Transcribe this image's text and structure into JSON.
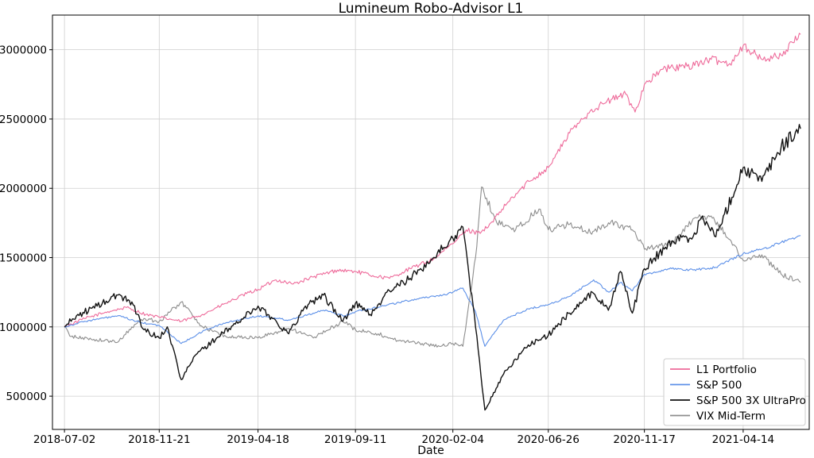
{
  "chart_data": {
    "type": "line",
    "title": "Lumineum Robo-Advisor L1",
    "xlabel": "Date",
    "ylabel": "",
    "x_ticks": [
      "2018-07-02",
      "2018-11-21",
      "2019-04-18",
      "2019-09-11",
      "2020-02-04",
      "2020-06-26",
      "2020-11-17",
      "2021-04-14"
    ],
    "x_range": [
      "2018-06-14",
      "2021-07-22"
    ],
    "y_ticks": [
      500000,
      1000000,
      1500000,
      2000000,
      2500000,
      3000000
    ],
    "y_tick_labels": [
      "500000",
      "1000000",
      "1500000",
      "2000000",
      "2500000",
      "3000000"
    ],
    "ylim": [
      260000,
      3250000
    ],
    "grid": true,
    "legend_position": "bottom-right",
    "series": [
      {
        "name": "L1 Portfolio",
        "color": "#ee6a9a",
        "points": [
          [
            "2018-07-02",
            1000000
          ],
          [
            "2018-08-01",
            1060000
          ],
          [
            "2018-09-05",
            1110000
          ],
          [
            "2018-10-03",
            1140000
          ],
          [
            "2018-11-01",
            1090000
          ],
          [
            "2018-11-21",
            1070000
          ],
          [
            "2018-12-24",
            1040000
          ],
          [
            "2019-01-25",
            1090000
          ],
          [
            "2019-03-01",
            1170000
          ],
          [
            "2019-04-01",
            1240000
          ],
          [
            "2019-04-18",
            1270000
          ],
          [
            "2019-05-15",
            1340000
          ],
          [
            "2019-06-10",
            1310000
          ],
          [
            "2019-07-10",
            1360000
          ],
          [
            "2019-08-15",
            1410000
          ],
          [
            "2019-09-11",
            1400000
          ],
          [
            "2019-10-07",
            1370000
          ],
          [
            "2019-11-01",
            1350000
          ],
          [
            "2019-12-02",
            1420000
          ],
          [
            "2020-01-06",
            1490000
          ],
          [
            "2020-02-04",
            1600000
          ],
          [
            "2020-02-24",
            1700000
          ],
          [
            "2020-03-12",
            1680000
          ],
          [
            "2020-03-28",
            1720000
          ],
          [
            "2020-04-25",
            1890000
          ],
          [
            "2020-05-28",
            2050000
          ],
          [
            "2020-06-26",
            2150000
          ],
          [
            "2020-07-28",
            2400000
          ],
          [
            "2020-08-28",
            2560000
          ],
          [
            "2020-09-28",
            2640000
          ],
          [
            "2020-10-20",
            2680000
          ],
          [
            "2020-11-03",
            2550000
          ],
          [
            "2020-11-17",
            2750000
          ],
          [
            "2020-12-15",
            2860000
          ],
          [
            "2021-01-20",
            2880000
          ],
          [
            "2021-02-25",
            2930000
          ],
          [
            "2021-03-25",
            2900000
          ],
          [
            "2021-04-14",
            3030000
          ],
          [
            "2021-05-12",
            2930000
          ],
          [
            "2021-06-10",
            2960000
          ],
          [
            "2021-07-09",
            3110000
          ]
        ]
      },
      {
        "name": "S&P 500",
        "color": "#5b8fe8",
        "points": [
          [
            "2018-07-02",
            1000000
          ],
          [
            "2018-08-01",
            1040000
          ],
          [
            "2018-09-20",
            1080000
          ],
          [
            "2018-10-25",
            1030000
          ],
          [
            "2018-11-21",
            1010000
          ],
          [
            "2018-12-24",
            880000
          ],
          [
            "2019-01-30",
            980000
          ],
          [
            "2019-03-01",
            1030000
          ],
          [
            "2019-04-18",
            1080000
          ],
          [
            "2019-06-03",
            1050000
          ],
          [
            "2019-07-25",
            1120000
          ],
          [
            "2019-08-26",
            1080000
          ],
          [
            "2019-09-11",
            1110000
          ],
          [
            "2019-10-30",
            1160000
          ],
          [
            "2019-12-20",
            1210000
          ],
          [
            "2020-01-20",
            1230000
          ],
          [
            "2020-02-04",
            1250000
          ],
          [
            "2020-02-19",
            1280000
          ],
          [
            "2020-03-09",
            1110000
          ],
          [
            "2020-03-23",
            860000
          ],
          [
            "2020-04-20",
            1050000
          ],
          [
            "2020-05-27",
            1130000
          ],
          [
            "2020-06-26",
            1160000
          ],
          [
            "2020-07-28",
            1220000
          ],
          [
            "2020-09-02",
            1340000
          ],
          [
            "2020-09-25",
            1250000
          ],
          [
            "2020-10-12",
            1320000
          ],
          [
            "2020-10-30",
            1260000
          ],
          [
            "2020-11-17",
            1380000
          ],
          [
            "2020-12-28",
            1420000
          ],
          [
            "2021-01-29",
            1410000
          ],
          [
            "2021-03-04",
            1430000
          ],
          [
            "2021-04-14",
            1530000
          ],
          [
            "2021-05-12",
            1560000
          ],
          [
            "2021-06-10",
            1610000
          ],
          [
            "2021-07-09",
            1660000
          ]
        ]
      },
      {
        "name": "S&P 500 3X UltraPro",
        "color": "#111111",
        "points": [
          [
            "2018-07-02",
            1000000
          ],
          [
            "2018-07-20",
            1080000
          ],
          [
            "2018-08-20",
            1150000
          ],
          [
            "2018-09-20",
            1230000
          ],
          [
            "2018-10-11",
            1180000
          ],
          [
            "2018-10-29",
            980000
          ],
          [
            "2018-11-21",
            920000
          ],
          [
            "2018-12-03",
            1000000
          ],
          [
            "2018-12-24",
            620000
          ],
          [
            "2019-01-15",
            800000
          ],
          [
            "2019-02-15",
            920000
          ],
          [
            "2019-03-15",
            1020000
          ],
          [
            "2019-04-18",
            1150000
          ],
          [
            "2019-05-10",
            1060000
          ],
          [
            "2019-06-03",
            950000
          ],
          [
            "2019-06-28",
            1150000
          ],
          [
            "2019-07-25",
            1230000
          ],
          [
            "2019-08-23",
            1040000
          ],
          [
            "2019-09-11",
            1170000
          ],
          [
            "2019-10-03",
            1090000
          ],
          [
            "2019-11-01",
            1260000
          ],
          [
            "2019-12-02",
            1350000
          ],
          [
            "2020-01-06",
            1500000
          ],
          [
            "2020-02-04",
            1640000
          ],
          [
            "2020-02-19",
            1720000
          ],
          [
            "2020-03-09",
            1000000
          ],
          [
            "2020-03-23",
            400000
          ],
          [
            "2020-04-20",
            660000
          ],
          [
            "2020-05-27",
            870000
          ],
          [
            "2020-06-26",
            940000
          ],
          [
            "2020-07-28",
            1100000
          ],
          [
            "2020-08-31",
            1250000
          ],
          [
            "2020-09-24",
            1120000
          ],
          [
            "2020-10-12",
            1400000
          ],
          [
            "2020-10-30",
            1100000
          ],
          [
            "2020-11-17",
            1420000
          ],
          [
            "2020-12-28",
            1620000
          ],
          [
            "2021-01-29",
            1650000
          ],
          [
            "2021-02-12",
            1800000
          ],
          [
            "2021-03-04",
            1650000
          ],
          [
            "2021-04-14",
            2150000
          ],
          [
            "2021-05-12",
            2050000
          ],
          [
            "2021-06-10",
            2300000
          ],
          [
            "2021-07-09",
            2430000
          ]
        ]
      },
      {
        "name": "VIX Mid-Term",
        "color": "#8c8c8c",
        "points": [
          [
            "2018-07-02",
            1000000
          ],
          [
            "2018-07-12",
            930000
          ],
          [
            "2018-08-15",
            910000
          ],
          [
            "2018-09-20",
            890000
          ],
          [
            "2018-10-11",
            1000000
          ],
          [
            "2018-10-29",
            1060000
          ],
          [
            "2018-11-21",
            1040000
          ],
          [
            "2018-12-24",
            1180000
          ],
          [
            "2019-01-25",
            1000000
          ],
          [
            "2019-03-01",
            930000
          ],
          [
            "2019-04-18",
            920000
          ],
          [
            "2019-06-03",
            990000
          ],
          [
            "2019-07-10",
            920000
          ],
          [
            "2019-08-23",
            1040000
          ],
          [
            "2019-09-11",
            980000
          ],
          [
            "2019-10-15",
            950000
          ],
          [
            "2019-11-15",
            900000
          ],
          [
            "2019-12-20",
            880000
          ],
          [
            "2020-01-15",
            860000
          ],
          [
            "2020-02-04",
            880000
          ],
          [
            "2020-02-19",
            860000
          ],
          [
            "2020-03-09",
            1500000
          ],
          [
            "2020-03-18",
            2010000
          ],
          [
            "2020-04-10",
            1750000
          ],
          [
            "2020-05-08",
            1700000
          ],
          [
            "2020-06-12",
            1850000
          ],
          [
            "2020-06-26",
            1700000
          ],
          [
            "2020-07-28",
            1740000
          ],
          [
            "2020-08-28",
            1680000
          ],
          [
            "2020-09-28",
            1760000
          ],
          [
            "2020-10-30",
            1700000
          ],
          [
            "2020-11-17",
            1560000
          ],
          [
            "2020-12-28",
            1600000
          ],
          [
            "2021-01-29",
            1780000
          ],
          [
            "2021-02-25",
            1800000
          ],
          [
            "2021-03-25",
            1630000
          ],
          [
            "2021-04-14",
            1480000
          ],
          [
            "2021-05-12",
            1520000
          ],
          [
            "2021-06-10",
            1380000
          ],
          [
            "2021-07-09",
            1320000
          ]
        ]
      }
    ]
  }
}
